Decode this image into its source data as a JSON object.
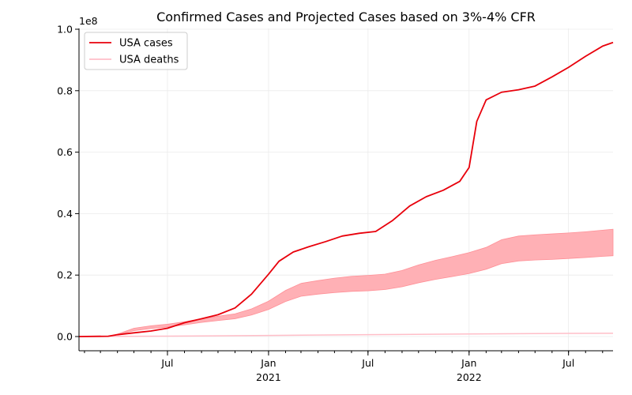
{
  "chart_data": {
    "type": "line",
    "title": "Confirmed Cases and Projected Cases based on 3%-4% CFR",
    "xlabel": "",
    "ylabel": "",
    "y_offset_label": "1e8",
    "ylim": [
      0,
      1.0
    ],
    "y_ticks": [
      0.0,
      0.2,
      0.4,
      0.6,
      0.8,
      1.0
    ],
    "y_tick_labels": [
      "0.0",
      "0.2",
      "0.4",
      "0.6",
      "0.8",
      "1.0"
    ],
    "x_range": [
      "2020-01-22",
      "2022-09-20"
    ],
    "x_ticks": [
      {
        "date": "2020-07-01",
        "label": "Jul",
        "sub": ""
      },
      {
        "date": "2021-01-01",
        "label": "Jan",
        "sub": "2021"
      },
      {
        "date": "2021-07-01",
        "label": "Jul",
        "sub": ""
      },
      {
        "date": "2022-01-01",
        "label": "Jan",
        "sub": "2022"
      },
      {
        "date": "2022-07-01",
        "label": "Jul",
        "sub": ""
      }
    ],
    "grid": true,
    "legend_position": "top-left",
    "series": [
      {
        "name": "USA cases",
        "color": "#e8000b",
        "x": [
          "2020-01-22",
          "2020-03-15",
          "2020-04-01",
          "2020-05-01",
          "2020-06-01",
          "2020-07-01",
          "2020-08-01",
          "2020-09-01",
          "2020-10-01",
          "2020-11-01",
          "2020-12-01",
          "2021-01-01",
          "2021-01-20",
          "2021-02-15",
          "2021-03-15",
          "2021-04-15",
          "2021-05-15",
          "2021-06-15",
          "2021-07-15",
          "2021-08-15",
          "2021-09-15",
          "2021-10-15",
          "2021-11-15",
          "2021-12-15",
          "2022-01-01",
          "2022-01-15",
          "2022-02-01",
          "2022-03-01",
          "2022-04-01",
          "2022-05-01",
          "2022-06-01",
          "2022-07-01",
          "2022-08-01",
          "2022-09-01",
          "2022-09-20"
        ],
        "values": [
          0,
          0.001,
          0.006,
          0.012,
          0.018,
          0.027,
          0.045,
          0.058,
          0.071,
          0.093,
          0.138,
          0.203,
          0.245,
          0.275,
          0.292,
          0.309,
          0.327,
          0.336,
          0.342,
          0.378,
          0.425,
          0.455,
          0.476,
          0.505,
          0.55,
          0.7,
          0.77,
          0.795,
          0.803,
          0.815,
          0.845,
          0.876,
          0.912,
          0.945,
          0.957
        ]
      },
      {
        "name": "USA deaths",
        "color": "#ffbec8",
        "x": [
          "2020-01-22",
          "2020-04-01",
          "2020-07-01",
          "2021-01-01",
          "2021-07-01",
          "2022-01-01",
          "2022-07-01",
          "2022-09-20"
        ],
        "values": [
          0,
          0.0005,
          0.0013,
          0.0035,
          0.0061,
          0.0083,
          0.0103,
          0.0106
        ]
      }
    ],
    "band": {
      "color": "#ffb0b5",
      "x": [
        "2020-01-22",
        "2020-03-15",
        "2020-04-01",
        "2020-05-01",
        "2020-06-01",
        "2020-07-01",
        "2020-08-01",
        "2020-09-01",
        "2020-10-01",
        "2020-11-01",
        "2020-12-01",
        "2021-01-01",
        "2021-02-01",
        "2021-03-01",
        "2021-04-01",
        "2021-05-01",
        "2021-06-01",
        "2021-07-01",
        "2021-08-01",
        "2021-09-01",
        "2021-10-01",
        "2021-11-01",
        "2021-12-01",
        "2022-01-01",
        "2022-02-01",
        "2022-03-01",
        "2022-04-01",
        "2022-05-01",
        "2022-06-01",
        "2022-07-01",
        "2022-08-01",
        "2022-09-01",
        "2022-09-20"
      ],
      "upper": [
        0,
        0.001,
        0.008,
        0.027,
        0.035,
        0.04,
        0.048,
        0.058,
        0.066,
        0.074,
        0.09,
        0.115,
        0.15,
        0.173,
        0.182,
        0.19,
        0.196,
        0.199,
        0.203,
        0.215,
        0.233,
        0.248,
        0.26,
        0.273,
        0.29,
        0.315,
        0.327,
        0.331,
        0.334,
        0.337,
        0.341,
        0.346,
        0.349
      ],
      "lower": [
        0,
        0.0007,
        0.006,
        0.019,
        0.026,
        0.031,
        0.038,
        0.046,
        0.052,
        0.058,
        0.07,
        0.088,
        0.114,
        0.131,
        0.138,
        0.143,
        0.147,
        0.149,
        0.153,
        0.162,
        0.175,
        0.186,
        0.195,
        0.205,
        0.219,
        0.237,
        0.246,
        0.249,
        0.251,
        0.254,
        0.257,
        0.261,
        0.263
      ]
    }
  }
}
